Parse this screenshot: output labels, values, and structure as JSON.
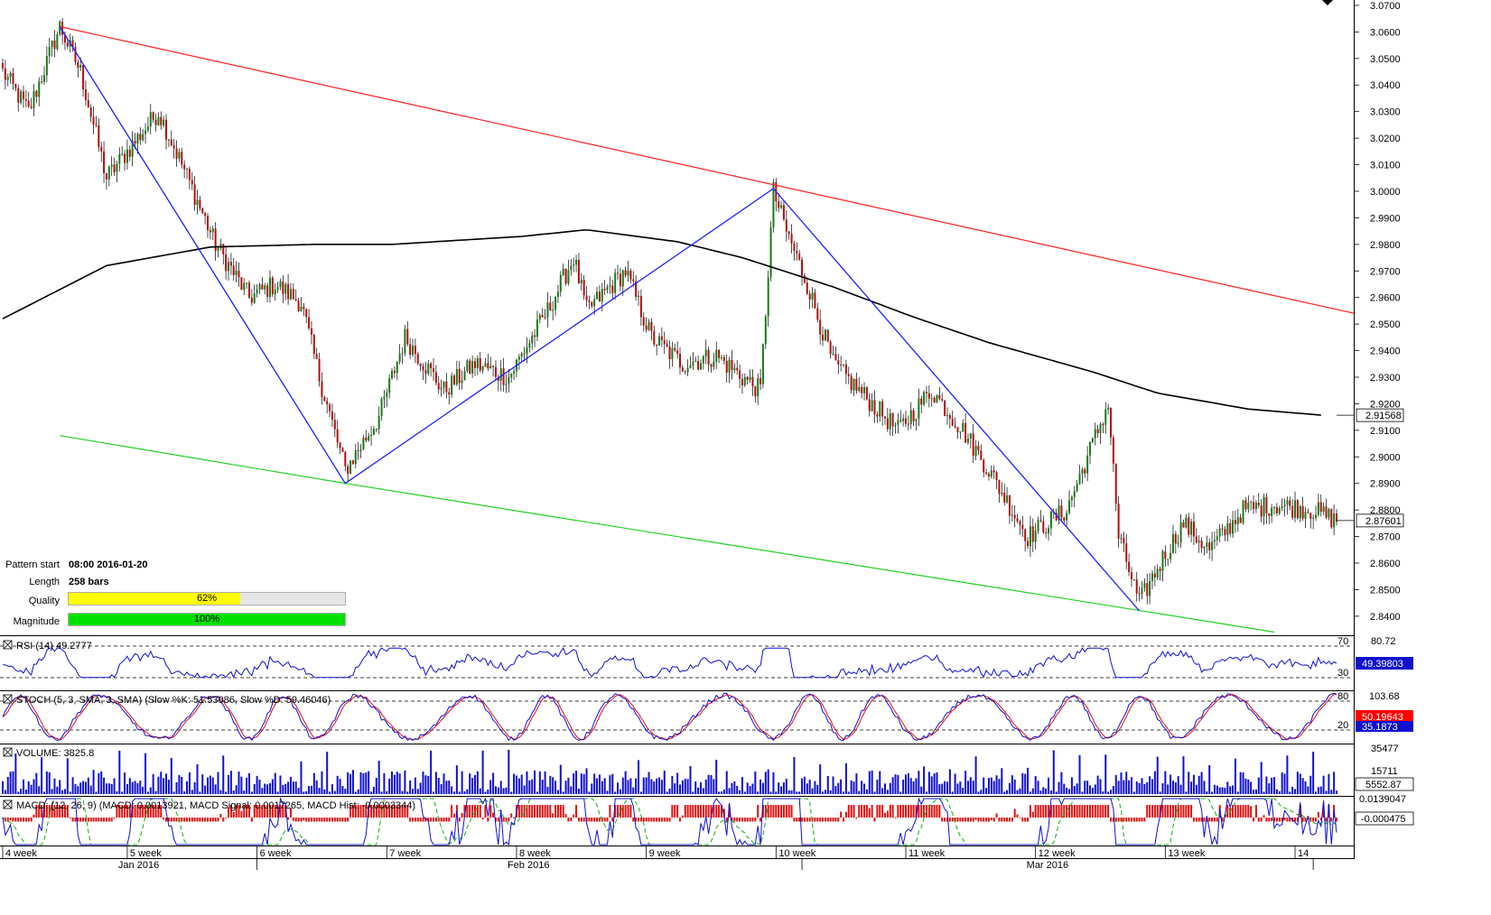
{
  "colors": {
    "bull": "#1a7a1a",
    "bear": "#b01010",
    "ma": "#000000",
    "resistance": "#ff2020",
    "support": "#20d020",
    "pattern": "#2020ff",
    "rsi": "#1010d0",
    "stoch_k": "#1010d0",
    "stoch_d": "#e01010",
    "volume": "#1010d0",
    "macd": "#1010d0",
    "macd_signal": "#10b010",
    "macd_hist": "#e01010",
    "quality": "#ffff00",
    "magnitude": "#00e000",
    "price_label_bg": "#ff0000"
  },
  "pattern_info": {
    "start_label": "Pattern start",
    "start_value": "08:00 2016-01-20",
    "length_label": "Length",
    "length_value": "258 bars",
    "quality_label": "Quality",
    "quality_value": "62%",
    "quality_fraction": 0.62,
    "magnitude_label": "Magnitude",
    "magnitude_value": "100%",
    "magnitude_fraction": 1.0
  },
  "chart_data": {
    "type": "candlestick",
    "bars": 515,
    "ylim": [
      2.8335,
      3.071
    ],
    "y_ticks": [
      "3.0700",
      "3.0600",
      "3.0500",
      "3.0400",
      "3.0300",
      "3.0200",
      "3.0100",
      "3.0000",
      "2.9900",
      "2.9800",
      "2.9700",
      "2.9600",
      "2.9500",
      "2.9400",
      "2.9300",
      "2.9200",
      "2.9100",
      "2.9000",
      "2.8900",
      "2.8800",
      "2.8700",
      "2.8600",
      "2.8500",
      "2.8400"
    ],
    "y_tick_values": [
      3.07,
      3.06,
      3.05,
      3.04,
      3.03,
      3.02,
      3.01,
      3.0,
      2.99,
      2.98,
      2.97,
      2.96,
      2.95,
      2.94,
      2.93,
      2.92,
      2.91,
      2.9,
      2.89,
      2.88,
      2.87,
      2.86,
      2.85,
      2.84
    ],
    "price_labels": [
      {
        "text": "2.91568",
        "value": 2.91568,
        "style": "box"
      },
      {
        "text": "2.87601",
        "value": 2.87601,
        "style": "box"
      }
    ],
    "week_labels": [
      {
        "text": "4 week",
        "bar": 0
      },
      {
        "text": "5 week",
        "bar": 48
      },
      {
        "text": "6 week",
        "bar": 98
      },
      {
        "text": "7 week",
        "bar": 148
      },
      {
        "text": "8 week",
        "bar": 198
      },
      {
        "text": "9 week",
        "bar": 248
      },
      {
        "text": "10 week",
        "bar": 298
      },
      {
        "text": "11 week",
        "bar": 348
      },
      {
        "text": "12 week",
        "bar": 398
      },
      {
        "text": "13 week",
        "bar": 448
      },
      {
        "text": "14",
        "bar": 498
      }
    ],
    "month_labels": [
      {
        "text": "Jan 2016",
        "bar": 48
      },
      {
        "text": "Feb 2016",
        "bar": 198
      },
      {
        "text": "Mar 2016",
        "bar": 398
      }
    ],
    "month_separators": [
      98,
      308,
      505
    ],
    "anchors": [
      [
        0,
        3.045
      ],
      [
        10,
        3.03
      ],
      [
        22,
        3.062
      ],
      [
        30,
        3.045
      ],
      [
        40,
        3.005
      ],
      [
        52,
        3.02
      ],
      [
        60,
        3.03
      ],
      [
        70,
        3.008
      ],
      [
        82,
        2.98
      ],
      [
        95,
        2.96
      ],
      [
        105,
        2.965
      ],
      [
        115,
        2.958
      ],
      [
        122,
        2.93
      ],
      [
        132,
        2.895
      ],
      [
        145,
        2.915
      ],
      [
        155,
        2.945
      ],
      [
        170,
        2.925
      ],
      [
        182,
        2.935
      ],
      [
        195,
        2.93
      ],
      [
        210,
        2.955
      ],
      [
        220,
        2.975
      ],
      [
        225,
        2.955
      ],
      [
        240,
        2.97
      ],
      [
        250,
        2.945
      ],
      [
        262,
        2.935
      ],
      [
        275,
        2.938
      ],
      [
        285,
        2.93
      ],
      [
        292,
        2.925
      ],
      [
        297,
        3.0
      ],
      [
        302,
        2.985
      ],
      [
        310,
        2.965
      ],
      [
        320,
        2.935
      ],
      [
        335,
        2.92
      ],
      [
        345,
        2.91
      ],
      [
        358,
        2.925
      ],
      [
        370,
        2.91
      ],
      [
        380,
        2.895
      ],
      [
        395,
        2.87
      ],
      [
        410,
        2.88
      ],
      [
        420,
        2.905
      ],
      [
        426,
        2.92
      ],
      [
        430,
        2.87
      ],
      [
        438,
        2.845
      ],
      [
        446,
        2.86
      ],
      [
        455,
        2.875
      ],
      [
        465,
        2.865
      ],
      [
        478,
        2.88
      ],
      [
        490,
        2.882
      ],
      [
        505,
        2.88
      ],
      [
        514,
        2.876
      ]
    ],
    "ma_curve": [
      [
        0,
        2.952
      ],
      [
        40,
        2.972
      ],
      [
        80,
        2.979
      ],
      [
        120,
        2.98
      ],
      [
        150,
        2.98
      ],
      [
        200,
        2.983
      ],
      [
        225,
        2.9855
      ],
      [
        260,
        2.981
      ],
      [
        285,
        2.975
      ],
      [
        320,
        2.964
      ],
      [
        350,
        2.953
      ],
      [
        380,
        2.943
      ],
      [
        420,
        2.932
      ],
      [
        445,
        2.924
      ],
      [
        480,
        2.918
      ],
      [
        508,
        2.9157
      ]
    ],
    "pattern_zigzag": [
      [
        22,
        3.062
      ],
      [
        132,
        2.89
      ],
      [
        297,
        3.001
      ],
      [
        438,
        2.842
      ]
    ],
    "resistance_line": [
      [
        22,
        3.062
      ],
      [
        515,
        2.954
      ]
    ],
    "support_line": [
      [
        22,
        2.908
      ],
      [
        132,
        2.89
      ],
      [
        490,
        2.834
      ]
    ],
    "rsi": {
      "label": "RSI (14) 49.2777",
      "ylim": [
        0,
        100
      ],
      "levels": [
        "70",
        "30"
      ],
      "level_values": [
        70,
        30
      ],
      "scale_top": "80.72",
      "value_box": "49.39803",
      "value": 49.39803
    },
    "stoch": {
      "label": "STOCH (5, 3, SMA, 3, SMA) (Slow %K: 51.53086, Slow %D: 59.46046)",
      "ylim": [
        0,
        100
      ],
      "levels": [
        "80",
        "20"
      ],
      "level_values": [
        80,
        20
      ],
      "scale_top": "103.68",
      "value_box_1": "50.19643",
      "value_box_2": "35.1873"
    },
    "volume": {
      "label": "VOLUME: 3825.8",
      "scale_top": "35477",
      "scale_mid": "15711",
      "value_box": "5552.87",
      "max": 35477
    },
    "macd": {
      "label": "MACD: (12, 26, 9) (MACD: 0.0013921, MACD Signal: 0.0017265, MACD Hist: -0.0003344)",
      "scale_top": "0.0139047",
      "value_box": "-0.000475"
    }
  }
}
